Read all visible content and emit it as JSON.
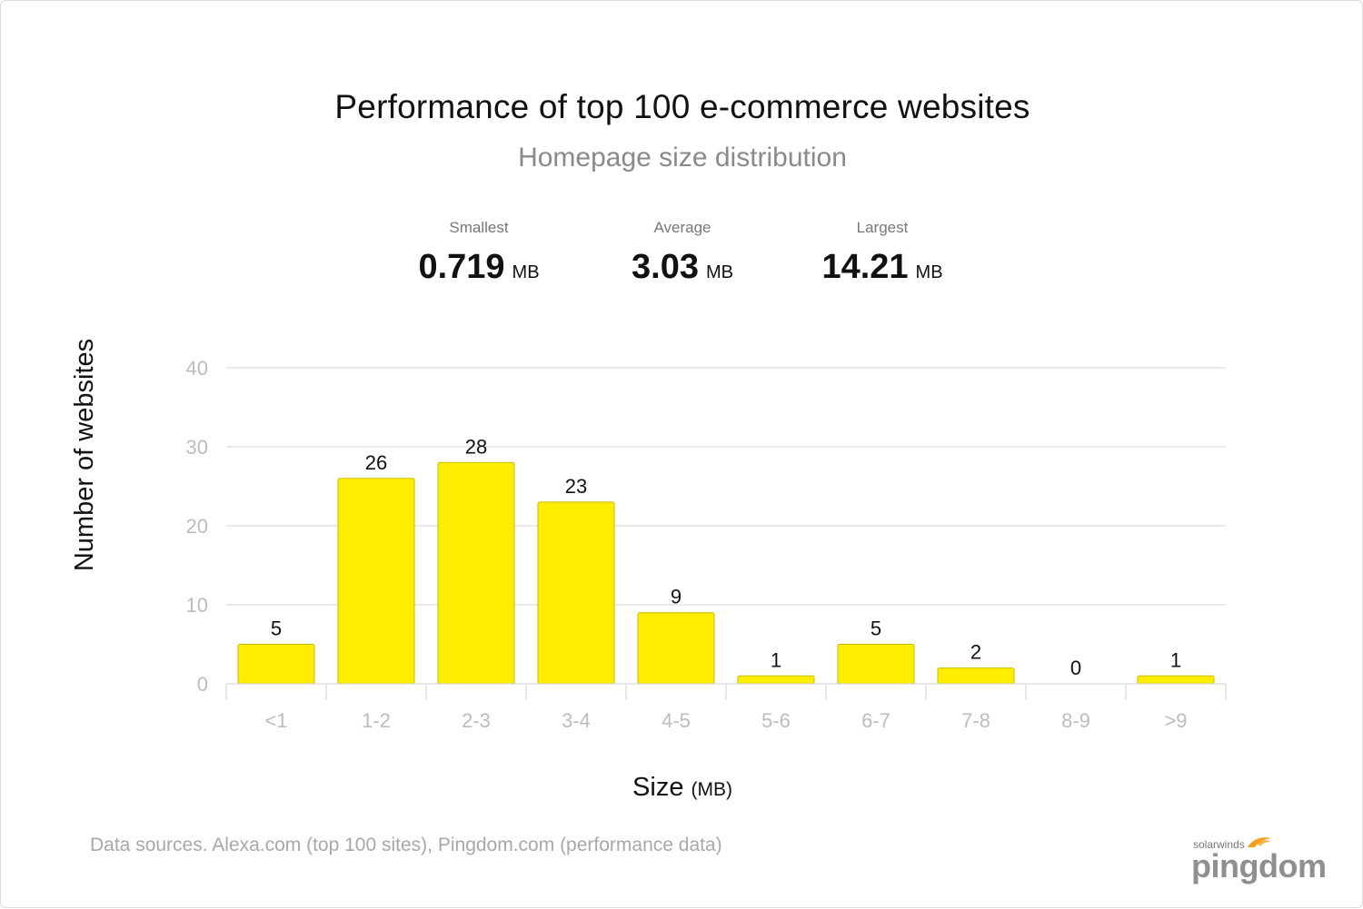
{
  "chart_data": {
    "type": "bar",
    "title": "Performance of top 100 e-commerce websites",
    "subtitle": "Homepage size distribution",
    "categories": [
      "<1",
      "1-2",
      "2-3",
      "3-4",
      "4-5",
      "5-6",
      "6-7",
      "7-8",
      "8-9",
      ">9"
    ],
    "values": [
      5,
      26,
      28,
      23,
      9,
      1,
      5,
      2,
      0,
      1
    ],
    "data_labels": [
      "5",
      "26",
      "28",
      "23",
      "9",
      "1",
      "5",
      "2",
      "0",
      "1"
    ],
    "xlabel": "Size",
    "xlabel_unit": "(MB)",
    "ylabel": "Number of websites",
    "ylim": [
      0,
      40
    ],
    "yticks": [
      0,
      10,
      20,
      30,
      40
    ],
    "grid": true,
    "bar_color": "#ffee00"
  },
  "stats": {
    "smallest": {
      "label": "Smallest",
      "value": "0.719",
      "unit": "MB"
    },
    "average": {
      "label": "Average",
      "value": "3.03",
      "unit": "MB"
    },
    "largest": {
      "label": "Largest",
      "value": "14.21",
      "unit": "MB"
    }
  },
  "footer": {
    "sources": "Data sources. Alexa.com (top 100 sites), Pingdom.com (performance data)"
  },
  "logo": {
    "small_text": "solarwinds",
    "brand_text": "pingdom",
    "icon": "flame-icon",
    "flame_color": "#f99d1c"
  }
}
